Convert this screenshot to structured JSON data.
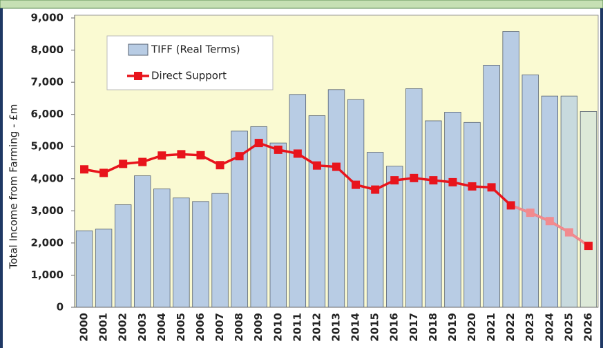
{
  "chart_data": {
    "type": "bar-line",
    "y_label": "Total Income from Farming - £m",
    "categories": [
      "2000",
      "2001",
      "2002",
      "2003",
      "2004",
      "2005",
      "2006",
      "2007",
      "2008",
      "2009",
      "2010",
      "2011",
      "2012",
      "2013",
      "2014",
      "2015",
      "2016",
      "2017",
      "2018",
      "2019",
      "2020",
      "2021",
      "2022",
      "2023",
      "2024",
      "2025",
      "2026"
    ],
    "series": [
      {
        "name": "TIFF (Real Terms)",
        "kind": "bar",
        "color": "#b8cce4",
        "colors": [
          "#b8cce4",
          "#b8cce4",
          "#b8cce4",
          "#b8cce4",
          "#b8cce4",
          "#b8cce4",
          "#b8cce4",
          "#b8cce4",
          "#b8cce4",
          "#b8cce4",
          "#b8cce4",
          "#b8cce4",
          "#b8cce4",
          "#b8cce4",
          "#b8cce4",
          "#b8cce4",
          "#b8cce4",
          "#b8cce4",
          "#b8cce4",
          "#b8cce4",
          "#b8cce4",
          "#b8cce4",
          "#b8cce4",
          "#b8cce4",
          "#b8cce4",
          "#c8dade",
          "#dde9d8"
        ],
        "values": [
          2380,
          2430,
          3190,
          4090,
          3680,
          3400,
          3290,
          3540,
          5480,
          5620,
          5110,
          6620,
          5960,
          6770,
          6460,
          4820,
          4390,
          6800,
          5800,
          6070,
          5750,
          7530,
          8580,
          7230,
          6570,
          6570,
          6090
        ]
      },
      {
        "name": "Direct Support",
        "kind": "line",
        "color": "#e8141c",
        "projection_color": "#f28a8e",
        "projection_from": 22,
        "values": [
          4290,
          4180,
          4460,
          4520,
          4720,
          4760,
          4730,
          4420,
          4700,
          5110,
          4900,
          4780,
          4410,
          4370,
          3810,
          3660,
          3950,
          4020,
          3950,
          3890,
          3760,
          3730,
          3170,
          2940,
          2680,
          2330,
          1910
        ]
      }
    ],
    "ylim": [
      0,
      9000
    ],
    "yticks": [
      0,
      {
        "value": 1000,
        "label": "1,000"
      },
      {
        "value": 2000,
        "label": "2,000"
      },
      {
        "value": 3000,
        "label": "3,000"
      },
      {
        "value": 4000,
        "label": "4,000"
      },
      {
        "value": 5000,
        "label": "5,000"
      },
      {
        "value": 6000,
        "label": "6,000"
      },
      {
        "value": 7000,
        "label": "7,000"
      },
      {
        "value": 8000,
        "label": "8,000"
      },
      {
        "value": 9000,
        "label": "9,000"
      }
    ],
    "grid": false,
    "legend": "upper left",
    "plot_background": "#fafad2"
  }
}
